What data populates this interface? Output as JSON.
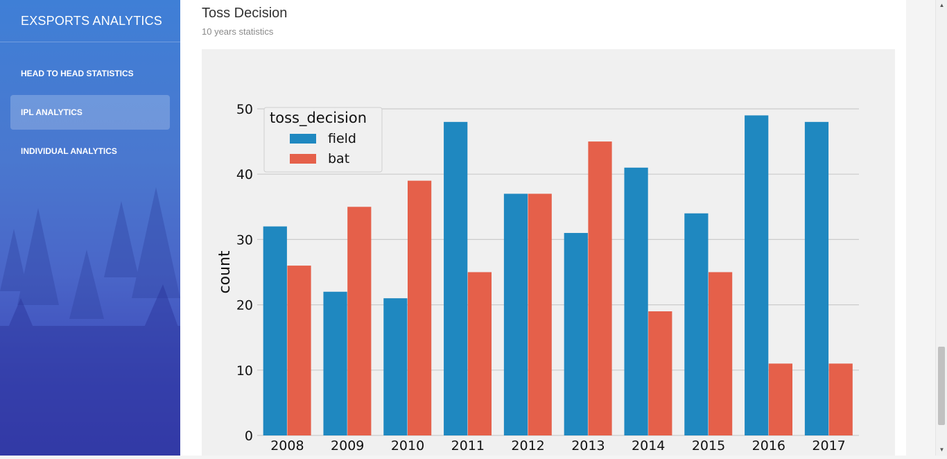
{
  "sidebar": {
    "brand": "EXSPORTS ANALYTICS",
    "items": [
      {
        "label": "HEAD TO HEAD STATISTICS"
      },
      {
        "label": "IPL ANALYTICS"
      },
      {
        "label": "INDIVIDUAL ANALYTICS"
      }
    ]
  },
  "card": {
    "title": "Toss Decision",
    "subtitle": "10 years statistics"
  },
  "chart_data": {
    "type": "bar",
    "categories": [
      "2008",
      "2009",
      "2010",
      "2011",
      "2012",
      "2013",
      "2014",
      "2015",
      "2016",
      "2017"
    ],
    "series": [
      {
        "name": "field",
        "color": "#1f88c0",
        "values": [
          32,
          22,
          21,
          48,
          37,
          31,
          41,
          34,
          49,
          48
        ]
      },
      {
        "name": "bat",
        "color": "#e5604a",
        "values": [
          26,
          35,
          39,
          25,
          37,
          45,
          19,
          25,
          11,
          11
        ]
      }
    ],
    "legend_title": "toss_decision",
    "legend_position": "top-left",
    "ylabel": "count",
    "xlabel": "",
    "ylim": [
      0,
      50
    ],
    "yticks": [
      0,
      10,
      20,
      30,
      40,
      50
    ],
    "grid": true
  }
}
